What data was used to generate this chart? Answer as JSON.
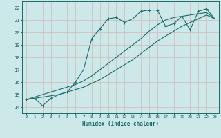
{
  "background_color": "#cce8e8",
  "grid_color": "#c0d8d8",
  "line_color": "#1a6b6b",
  "xlabel": "Humidex (Indice chaleur)",
  "xlim": [
    -0.5,
    23.5
  ],
  "ylim": [
    13.5,
    22.5
  ],
  "yticks": [
    14,
    15,
    16,
    17,
    18,
    19,
    20,
    21,
    22
  ],
  "xticks": [
    0,
    1,
    2,
    3,
    4,
    5,
    6,
    7,
    8,
    9,
    10,
    11,
    12,
    13,
    14,
    15,
    16,
    17,
    18,
    19,
    20,
    21,
    22,
    23
  ],
  "line1_x": [
    0,
    1,
    2,
    3,
    4,
    5,
    6,
    7,
    8,
    9,
    10,
    11,
    12,
    13,
    14,
    15,
    16,
    17,
    18,
    19,
    20,
    21,
    22,
    23
  ],
  "line1_y": [
    14.6,
    14.7,
    14.1,
    14.7,
    15.0,
    15.2,
    16.0,
    17.0,
    19.5,
    20.3,
    21.1,
    21.2,
    20.8,
    21.1,
    21.7,
    21.8,
    21.8,
    20.5,
    20.7,
    21.3,
    20.2,
    21.7,
    21.9,
    21.1
  ],
  "line2_x": [
    0,
    1,
    2,
    3,
    4,
    5,
    6,
    7,
    8,
    9,
    10,
    11,
    12,
    13,
    14,
    15,
    16,
    17,
    18,
    19,
    20,
    21,
    22,
    23
  ],
  "line2_y": [
    14.6,
    14.7,
    14.8,
    14.9,
    15.0,
    15.2,
    15.4,
    15.6,
    15.9,
    16.2,
    16.6,
    17.0,
    17.4,
    17.8,
    18.3,
    18.8,
    19.3,
    19.7,
    20.1,
    20.5,
    20.8,
    21.1,
    21.4,
    21.1
  ],
  "line3_x": [
    0,
    1,
    2,
    3,
    4,
    5,
    6,
    7,
    8,
    9,
    10,
    11,
    12,
    13,
    14,
    15,
    16,
    17,
    18,
    19,
    20,
    21,
    22,
    23
  ],
  "line3_y": [
    14.6,
    14.8,
    15.0,
    15.2,
    15.4,
    15.6,
    15.8,
    16.1,
    16.5,
    17.0,
    17.5,
    18.0,
    18.5,
    19.0,
    19.5,
    20.1,
    20.6,
    21.0,
    21.2,
    21.3,
    21.4,
    21.5,
    21.6,
    21.1
  ]
}
